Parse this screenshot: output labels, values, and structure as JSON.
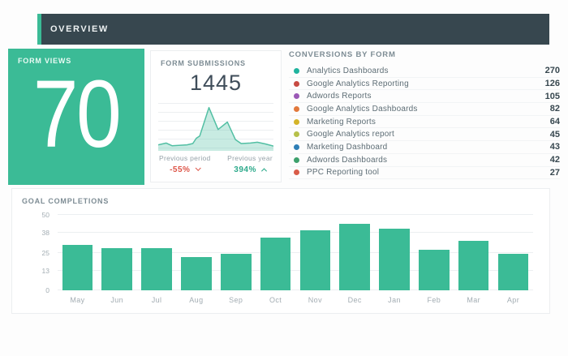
{
  "header": {
    "title": "OVERVIEW"
  },
  "cards": {
    "form_views": {
      "title": "FORM VIEWS",
      "value": "70"
    },
    "form_submissions": {
      "title": "FORM SUBMISSIONS",
      "value": "1445",
      "previous_period": {
        "label": "Previous period",
        "value": "-55%",
        "direction": "down"
      },
      "previous_year": {
        "label": "Previous year",
        "value": "394%",
        "direction": "up"
      }
    },
    "conversions": {
      "title": "CONVERSIONS BY FORM",
      "items": [
        {
          "label": "Analytics Dashboards",
          "value": "270",
          "color": "#1fb39e"
        },
        {
          "label": "Google Analytics Reporting",
          "value": "126",
          "color": "#c74a42"
        },
        {
          "label": "Adwords Reports",
          "value": "105",
          "color": "#9b59b6"
        },
        {
          "label": "Google Analytics Dashboards",
          "value": "82",
          "color": "#e2793c"
        },
        {
          "label": "Marketing Reports",
          "value": "64",
          "color": "#d4b429"
        },
        {
          "label": "Google Analytics report",
          "value": "45",
          "color": "#b6c04a"
        },
        {
          "label": "Marketing Dashboard",
          "value": "43",
          "color": "#2f7fb6"
        },
        {
          "label": "Adwords Dashboards",
          "value": "42",
          "color": "#3da06c"
        },
        {
          "label": "PPC Reporting tool",
          "value": "27",
          "color": "#d95c49"
        }
      ]
    },
    "goal_completions": {
      "title": "GOAL COMPLETIONS"
    }
  },
  "chart_data": [
    {
      "type": "area",
      "title": "Form submissions sparkline (no axes shown, values relative to max)",
      "x_percent": [
        0,
        7,
        12,
        25,
        30,
        33,
        36,
        44,
        52,
        60,
        67,
        72,
        80,
        86,
        93,
        100
      ],
      "values_percent_of_max": [
        10,
        14,
        8,
        10,
        13,
        25,
        30,
        95,
        45,
        62,
        22,
        13,
        14,
        16,
        12,
        7
      ],
      "line_color": "#52bfa3",
      "fill_color": "rgba(98,197,172,0.35)",
      "grid": true,
      "legend": false
    },
    {
      "type": "bar",
      "title": "GOAL COMPLETIONS",
      "categories": [
        "May",
        "Jun",
        "Jul",
        "Aug",
        "Sep",
        "Oct",
        "Nov",
        "Dec",
        "Jan",
        "Feb",
        "Mar",
        "Apr"
      ],
      "values": [
        30,
        28,
        28,
        22,
        24,
        35,
        40,
        44,
        41,
        27,
        33,
        24
      ],
      "xlabel": "",
      "ylabel": "",
      "ylim": [
        0,
        50
      ],
      "yticks": [
        0,
        13,
        25,
        38,
        50
      ],
      "bar_color": "#3bbb96",
      "grid": true,
      "legend": false
    }
  ],
  "colors": {
    "accent_teal": "#3bbb96",
    "header_bg": "#37474f",
    "negative_red": "#dd5548",
    "positive_teal": "#2ba98a"
  }
}
